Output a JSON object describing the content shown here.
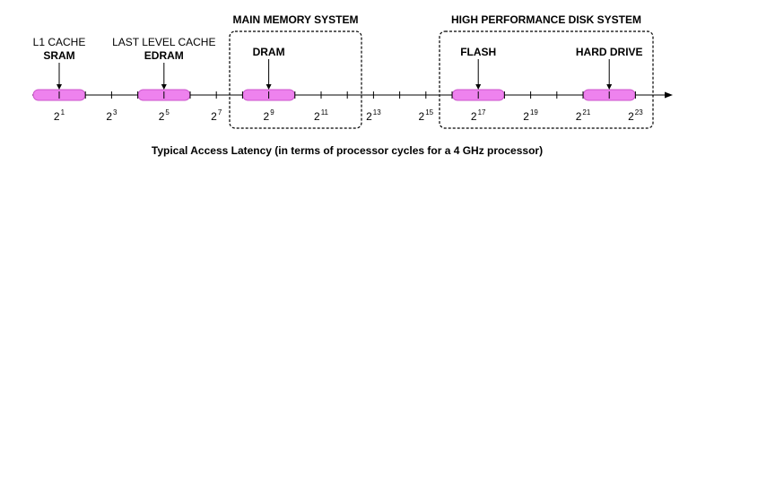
{
  "groups": [
    {
      "title": "MAIN MEMORY SYSTEM",
      "from_exp": 8,
      "to_exp": 12
    },
    {
      "title": "HIGH PERFORMANCE DISK SYSTEM",
      "from_exp": 16,
      "to_exp": 24
    }
  ],
  "technologies": [
    {
      "line1": "L1 CACHE",
      "line2": "SRAM",
      "center_exp": 1
    },
    {
      "line1": "LAST LEVEL CACHE",
      "line2": "EDRAM",
      "center_exp": 5
    },
    {
      "line1": "",
      "line2": "DRAM",
      "center_exp": 9
    },
    {
      "line1": "",
      "line2": "FLASH",
      "center_exp": 17
    },
    {
      "line1": "",
      "line2": "HARD DRIVE",
      "center_exp": 22
    }
  ],
  "axis": {
    "base": "2",
    "tick_exponents": [
      "1",
      "3",
      "5",
      "7",
      "9",
      "11",
      "13",
      "15",
      "17",
      "19",
      "21",
      "23"
    ],
    "caption": "Typical Access Latency (in terms of processor cycles for a 4 GHz processor)"
  },
  "colors": {
    "range_fill": "#ee82ee",
    "range_stroke": "#cc55cc",
    "line": "#000000"
  }
}
